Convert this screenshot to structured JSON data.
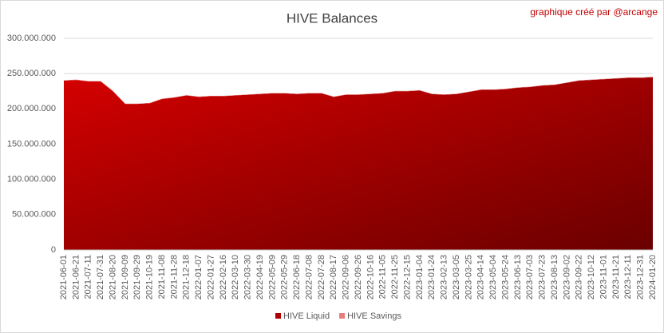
{
  "chart_data": {
    "type": "area",
    "title": "HIVE Balances",
    "annotation": "graphique créé par @arcange",
    "categories": [
      "2021-06-01",
      "2021-06-21",
      "2021-07-11",
      "2021-07-31",
      "2021-08-20",
      "2021-09-09",
      "2021-09-29",
      "2021-10-19",
      "2021-11-08",
      "2021-11-28",
      "2021-12-18",
      "2022-01-07",
      "2022-01-27",
      "2022-02-16",
      "2022-03-10",
      "2022-03-30",
      "2022-04-19",
      "2022-05-09",
      "2022-05-29",
      "2022-06-18",
      "2022-07-08",
      "2022-07-28",
      "2022-08-17",
      "2022-09-06",
      "2022-09-26",
      "2022-10-16",
      "2022-11-05",
      "2022-11-25",
      "2022-12-15",
      "2023-01-04",
      "2023-01-24",
      "2023-02-13",
      "2023-03-05",
      "2023-03-25",
      "2023-04-14",
      "2023-05-04",
      "2023-05-24",
      "2023-06-13",
      "2023-07-03",
      "2023-07-23",
      "2023-08-13",
      "2023-09-02",
      "2023-09-22",
      "2023-10-12",
      "2023-11-01",
      "2023-11-21",
      "2023-12-11",
      "2023-12-31",
      "2024-01-20"
    ],
    "series": [
      {
        "name": "HIVE Liquid",
        "color": "#b00000",
        "values": [
          240000000,
          241000000,
          239000000,
          239000000,
          225000000,
          207000000,
          207000000,
          208000000,
          214000000,
          216000000,
          219000000,
          217000000,
          218000000,
          218000000,
          219000000,
          220000000,
          221000000,
          222000000,
          222000000,
          221000000,
          222000000,
          222000000,
          217000000,
          220000000,
          220000000,
          221000000,
          222000000,
          225000000,
          225000000,
          226000000,
          221000000,
          220000000,
          221000000,
          224000000,
          227000000,
          227000000,
          228000000,
          230000000,
          231000000,
          233000000,
          234000000,
          237000000,
          240000000,
          241000000,
          242000000,
          243000000,
          244000000,
          244000000,
          245000000
        ]
      },
      {
        "name": "HIVE Savings",
        "color": "#e57f7f",
        "values": [
          500000,
          500000,
          500000,
          500000,
          500000,
          500000,
          500000,
          500000,
          500000,
          500000,
          500000,
          500000,
          500000,
          500000,
          500000,
          500000,
          500000,
          500000,
          500000,
          500000,
          500000,
          500000,
          500000,
          500000,
          500000,
          500000,
          500000,
          500000,
          500000,
          500000,
          500000,
          500000,
          500000,
          500000,
          500000,
          500000,
          500000,
          500000,
          500000,
          500000,
          500000,
          500000,
          500000,
          500000,
          500000,
          500000,
          500000,
          500000,
          500000
        ]
      }
    ],
    "stacked": true,
    "ylim": [
      0,
      300000000
    ],
    "yticks": [
      0,
      {
        "value": 50000000,
        "label": "50.000.000"
      },
      {
        "value": 100000000,
        "label": "100.000.000"
      },
      {
        "value": 150000000,
        "label": "150.000.000"
      },
      {
        "value": 200000000,
        "label": "200.000.000"
      },
      {
        "value": 250000000,
        "label": "250.000.000"
      },
      {
        "value": 300000000,
        "label": "300.000.000"
      }
    ],
    "grid": true,
    "legend": "bottom"
  }
}
